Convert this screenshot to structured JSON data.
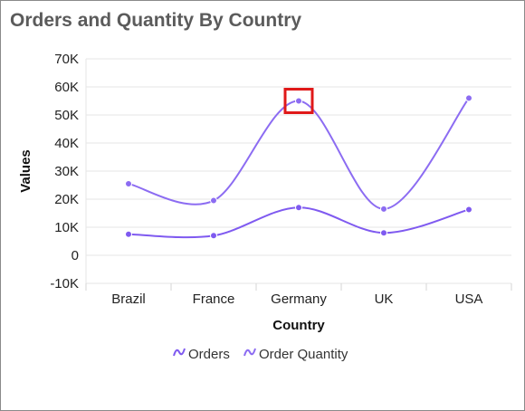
{
  "title": "Orders and Quantity By Country",
  "colors": {
    "orders": "#7f5af0",
    "order_quantity": "#8c6cf2",
    "highlight": "#e01919",
    "grid": "#e6e6e6"
  },
  "chart_data": {
    "type": "line",
    "title": "Orders and Quantity By Country",
    "xlabel": "Country",
    "ylabel": "Values",
    "categories": [
      "Brazil",
      "France",
      "Germany",
      "UK",
      "USA"
    ],
    "yticks": [
      "-10K",
      "0",
      "10K",
      "20K",
      "30K",
      "40K",
      "50K",
      "60K",
      "70K"
    ],
    "ylim": [
      -10000,
      70000
    ],
    "series": [
      {
        "name": "Orders",
        "values": [
          7500,
          7000,
          17000,
          8000,
          16300
        ]
      },
      {
        "name": "Order Quantity",
        "values": [
          25500,
          19500,
          55000,
          16500,
          56000
        ]
      }
    ],
    "highlight": {
      "series": "Order Quantity",
      "category": "Germany"
    },
    "legend": "bottom-center",
    "grid": true
  }
}
